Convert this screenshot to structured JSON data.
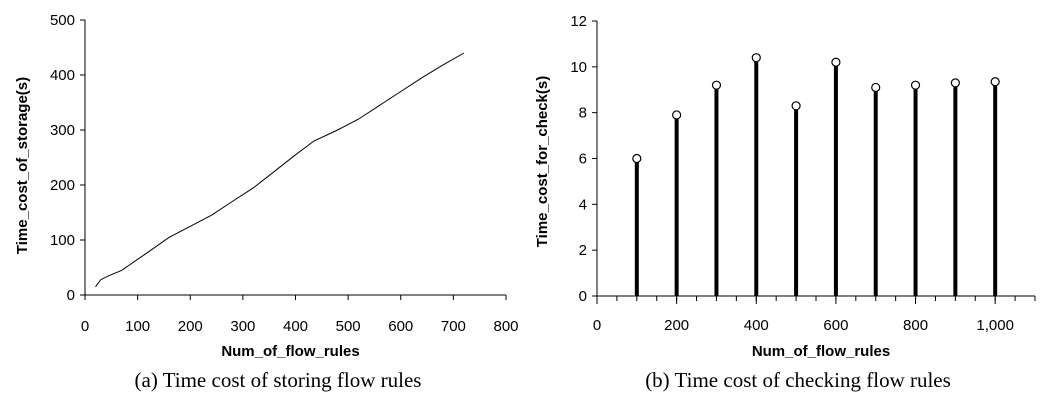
{
  "chart_data": [
    {
      "type": "line",
      "xlabel": "Num_of_flow_rules",
      "ylabel": "Time_cost_of_storage(s)",
      "caption": "(a) Time cost of storing flow rules",
      "xlim": [
        0,
        800
      ],
      "ylim": [
        0,
        500
      ],
      "xticks": [
        0,
        100,
        200,
        300,
        400,
        500,
        600,
        700,
        800
      ],
      "xtick_labels": [
        "0",
        "100",
        "200",
        "300",
        "400",
        "500",
        "600",
        "700",
        "800"
      ],
      "yticks": [
        0,
        100,
        200,
        300,
        400,
        500
      ],
      "ytick_labels": [
        "0",
        "100",
        "200",
        "300",
        "400",
        "500"
      ],
      "grid": false,
      "series": [
        {
          "x": [
            20,
            30,
            45,
            70,
            100,
            120,
            160,
            200,
            240,
            280,
            320,
            360,
            400,
            435,
            480,
            520,
            560,
            600,
            640,
            680,
            720
          ],
          "y": [
            15,
            28,
            35,
            45,
            65,
            78,
            105,
            125,
            145,
            170,
            195,
            225,
            255,
            280,
            300,
            320,
            345,
            370,
            395,
            418,
            440
          ]
        }
      ]
    },
    {
      "type": "stem",
      "xlabel": "Num_of_flow_rules",
      "ylabel": "Time_cost_for_check(s)",
      "caption": "(b) Time cost of checking flow rules",
      "xlim": [
        0,
        1100
      ],
      "ylim": [
        0,
        12
      ],
      "xticks": [
        0,
        200,
        400,
        600,
        800,
        1000
      ],
      "xtick_labels": [
        "0",
        "200",
        "400",
        "600",
        "800",
        "1,000"
      ],
      "xtick_minor_step": 50,
      "yticks": [
        0,
        2,
        4,
        6,
        8,
        10,
        12
      ],
      "ytick_labels": [
        "0",
        "2",
        "4",
        "6",
        "8",
        "10",
        "12"
      ],
      "grid": false,
      "series": [
        {
          "x": [
            100,
            200,
            300,
            400,
            500,
            600,
            700,
            800,
            900,
            1000
          ],
          "y": [
            6.0,
            7.9,
            9.2,
            10.4,
            8.3,
            10.2,
            9.1,
            9.2,
            9.3,
            9.35
          ]
        }
      ]
    }
  ]
}
